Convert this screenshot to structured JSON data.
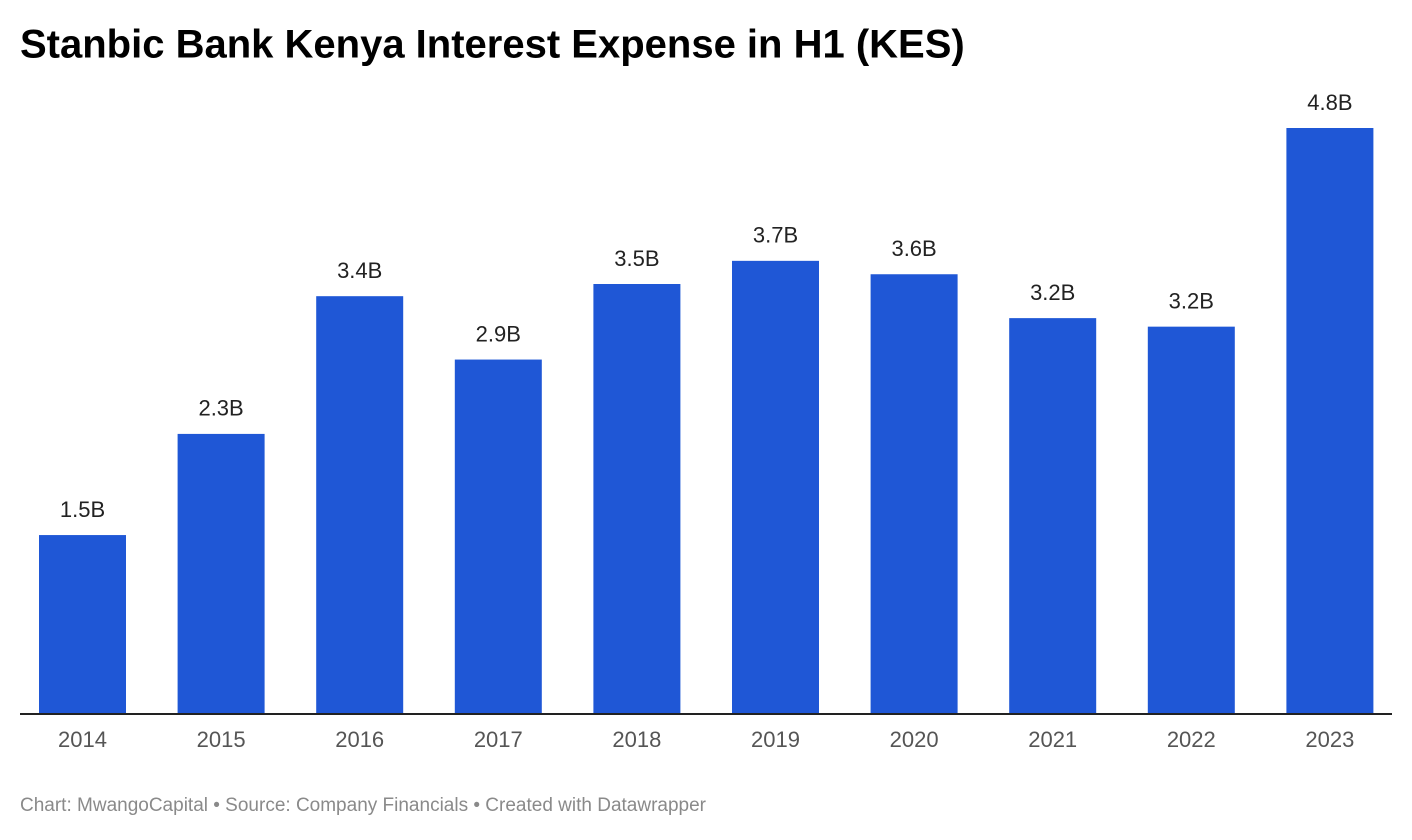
{
  "chart_data": {
    "type": "bar",
    "title": "Stanbic Bank Kenya Interest Expense in H1 (KES)",
    "categories": [
      "2014",
      "2015",
      "2016",
      "2017",
      "2018",
      "2019",
      "2020",
      "2021",
      "2022",
      "2023"
    ],
    "values": [
      1.46,
      2.29,
      3.42,
      2.9,
      3.52,
      3.71,
      3.6,
      3.24,
      3.17,
      4.8
    ],
    "value_labels": [
      "1.5B",
      "2.3B",
      "3.4B",
      "2.9B",
      "3.5B",
      "3.7B",
      "3.6B",
      "3.2B",
      "3.2B",
      "4.8B"
    ],
    "color": "#1f57d6",
    "footer": "Chart: MwangoCapital • Source: Company Financials • Created with Datawrapper"
  }
}
